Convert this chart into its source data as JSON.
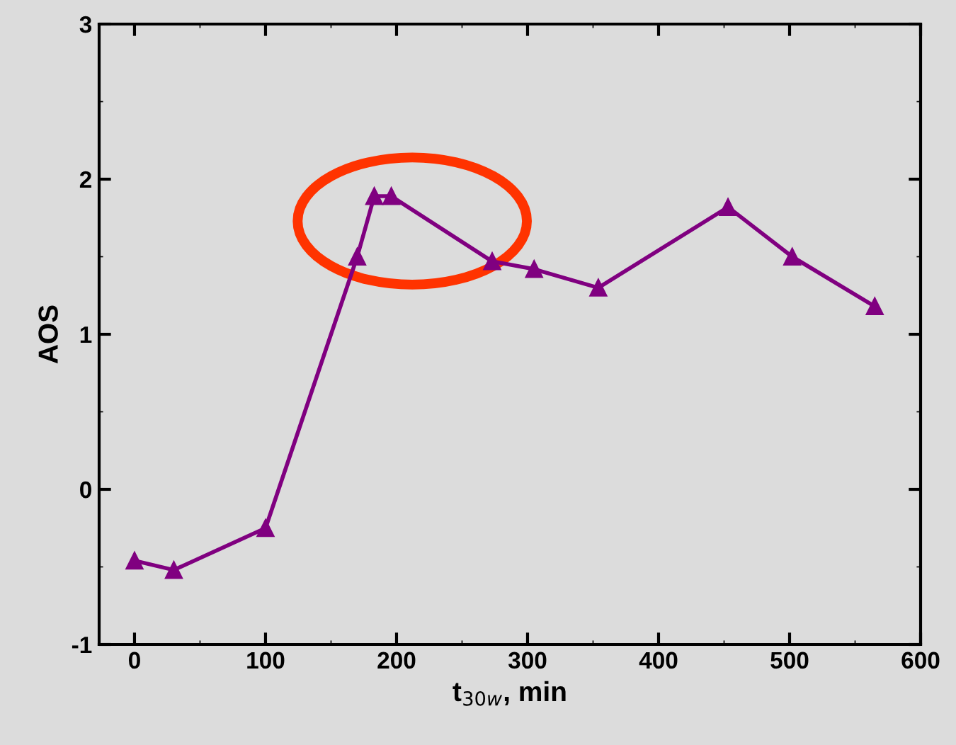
{
  "chart_data": {
    "type": "line",
    "xlabel": "t$_{30w}$, min",
    "ylabel": "AOS",
    "x": [
      0,
      30,
      100,
      170,
      183,
      196,
      273,
      305,
      354,
      453,
      502,
      565
    ],
    "series": [
      {
        "color": "#800080",
        "values": [
          -0.46,
          -0.52,
          -0.25,
          1.5,
          1.89,
          1.89,
          1.47,
          1.42,
          1.3,
          1.82,
          1.5,
          1.18
        ]
      }
    ],
    "xlim": [
      -27,
      600
    ],
    "xticks": [
      0,
      100,
      200,
      300,
      400,
      500,
      600
    ],
    "ylim": [
      -1,
      3
    ],
    "yticks": [
      -1,
      0,
      1,
      2,
      3
    ],
    "marker": "triangle",
    "line_style": "solid",
    "grid": false,
    "legend": false
  }
}
